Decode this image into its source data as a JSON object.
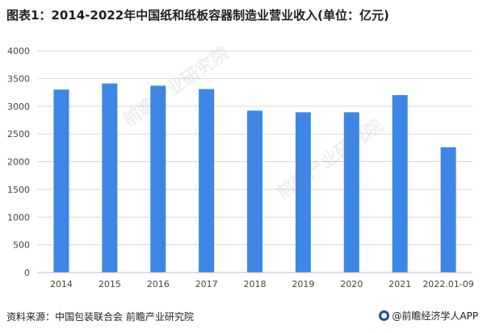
{
  "title": "图表1：2014-2022年中国纸和纸板容器制造业营业收入(单位：亿元)",
  "source": "资料来源：中国包装联合会 前瞻产业研究院",
  "brand": "@前瞻经济学人APP",
  "watermark": "前瞻产业研究院",
  "colors": {
    "bar": "#3d86e6",
    "grid": "#d9d9d9",
    "axis": "#bfbfbf"
  },
  "chart_data": {
    "type": "bar",
    "title": "图表1：2014-2022年中国纸和纸板容器制造业营业收入(单位：亿元)",
    "categories": [
      "2014",
      "2015",
      "2016",
      "2017",
      "2018",
      "2019",
      "2020",
      "2021",
      "2022.01-09"
    ],
    "values": [
      3300,
      3410,
      3370,
      3310,
      2920,
      2890,
      2890,
      3200,
      2260
    ],
    "ylim": [
      0,
      4000
    ],
    "yticks": [
      0,
      500,
      1000,
      1500,
      2000,
      2500,
      3000,
      3500,
      4000
    ],
    "grid": true,
    "legend": "none"
  }
}
